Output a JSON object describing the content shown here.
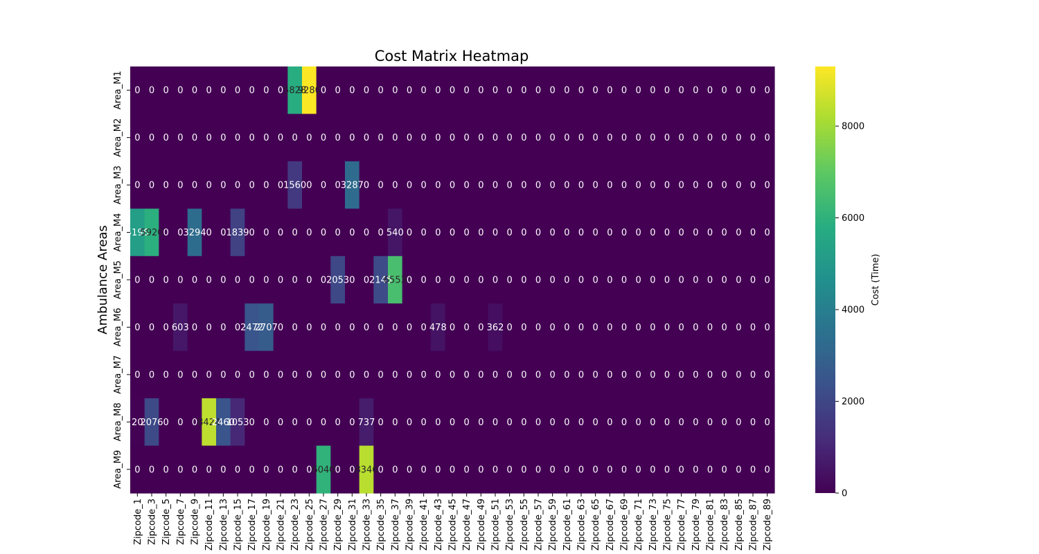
{
  "chart_data": {
    "type": "heatmap",
    "title": "Cost Matrix Heatmap",
    "ylabel": "Ambulance Areas",
    "xlabel": "",
    "colorbar_label": "Cost (Time)",
    "colormap": "viridis",
    "vmin": 0,
    "vmax": 9300,
    "colorbar_ticks": [
      0,
      2000,
      4000,
      6000,
      8000
    ],
    "rows": [
      "Area_M1",
      "Area_M2",
      "Area_M3",
      "Area_M4",
      "Area_M5",
      "Area_M6",
      "Area_M7",
      "Area_M8",
      "Area_M9"
    ],
    "columns_count": 45,
    "column_prefix": "Zipcode_",
    "x_tick_labels": [
      "Zipcode_1",
      "Zipcode_3",
      "Zipcode_5",
      "Zipcode_7",
      "Zipcode_9",
      "Zipcode_11",
      "Zipcode_13",
      "Zipcode_15",
      "Zipcode_17",
      "Zipcode_19",
      "Zipcode_21",
      "Zipcode_23",
      "Zipcode_25",
      "Zipcode_27",
      "Zipcode_29",
      "Zipcode_31",
      "Zipcode_33",
      "Zipcode_35",
      "Zipcode_37",
      "Zipcode_39",
      "Zipcode_41",
      "Zipcode_43",
      "Zipcode_45",
      "Zipcode_47",
      "Zipcode_49",
      "Zipcode_51",
      "Zipcode_53",
      "Zipcode_55",
      "Zipcode_57",
      "Zipcode_59",
      "Zipcode_61",
      "Zipcode_63",
      "Zipcode_65",
      "Zipcode_67",
      "Zipcode_69",
      "Zipcode_71",
      "Zipcode_73",
      "Zipcode_75",
      "Zipcode_77",
      "Zipcode_79",
      "Zipcode_81",
      "Zipcode_83",
      "Zipcode_85",
      "Zipcode_87",
      "Zipcode_89"
    ],
    "nonzero_cells": [
      {
        "row": 0,
        "col": 11,
        "value": 5828,
        "label": "5828"
      },
      {
        "row": 0,
        "col": 12,
        "value": 9280,
        "label": "9280"
      },
      {
        "row": 2,
        "col": 11,
        "value": 1560,
        "label": "1560"
      },
      {
        "row": 2,
        "col": 15,
        "value": 3287,
        "label": "3287"
      },
      {
        "row": 3,
        "col": 0,
        "value": 5196,
        "label": "5196"
      },
      {
        "row": 3,
        "col": 1,
        "value": 5920,
        "label": "5920"
      },
      {
        "row": 3,
        "col": 4,
        "value": 3294,
        "label": "3294"
      },
      {
        "row": 3,
        "col": 7,
        "value": 1839,
        "label": "1839"
      },
      {
        "row": 3,
        "col": 18,
        "value": 540,
        "label": "540"
      },
      {
        "row": 4,
        "col": 14,
        "value": 2053,
        "label": "2053"
      },
      {
        "row": 4,
        "col": 17,
        "value": 2145,
        "label": "2145"
      },
      {
        "row": 4,
        "col": 18,
        "value": 6553,
        "label": "6553"
      },
      {
        "row": 5,
        "col": 3,
        "value": 603,
        "label": "603"
      },
      {
        "row": 5,
        "col": 8,
        "value": 2472,
        "label": "2472"
      },
      {
        "row": 5,
        "col": 9,
        "value": 2707,
        "label": "2707"
      },
      {
        "row": 5,
        "col": 21,
        "value": 478,
        "label": "478"
      },
      {
        "row": 5,
        "col": 25,
        "value": 362,
        "label": "362"
      },
      {
        "row": 7,
        "col": 0,
        "value": 20,
        "label": "20"
      },
      {
        "row": 7,
        "col": 1,
        "value": 2076,
        "label": "2076"
      },
      {
        "row": 7,
        "col": 5,
        "value": 8424,
        "label": "8424"
      },
      {
        "row": 7,
        "col": 6,
        "value": 2460,
        "label": "2460"
      },
      {
        "row": 7,
        "col": 7,
        "value": 1053,
        "label": "1053"
      },
      {
        "row": 7,
        "col": 16,
        "value": 737,
        "label": "737"
      },
      {
        "row": 8,
        "col": 13,
        "value": 6040,
        "label": "6040"
      },
      {
        "row": 8,
        "col": 16,
        "value": 8346,
        "label": "8346"
      }
    ]
  }
}
